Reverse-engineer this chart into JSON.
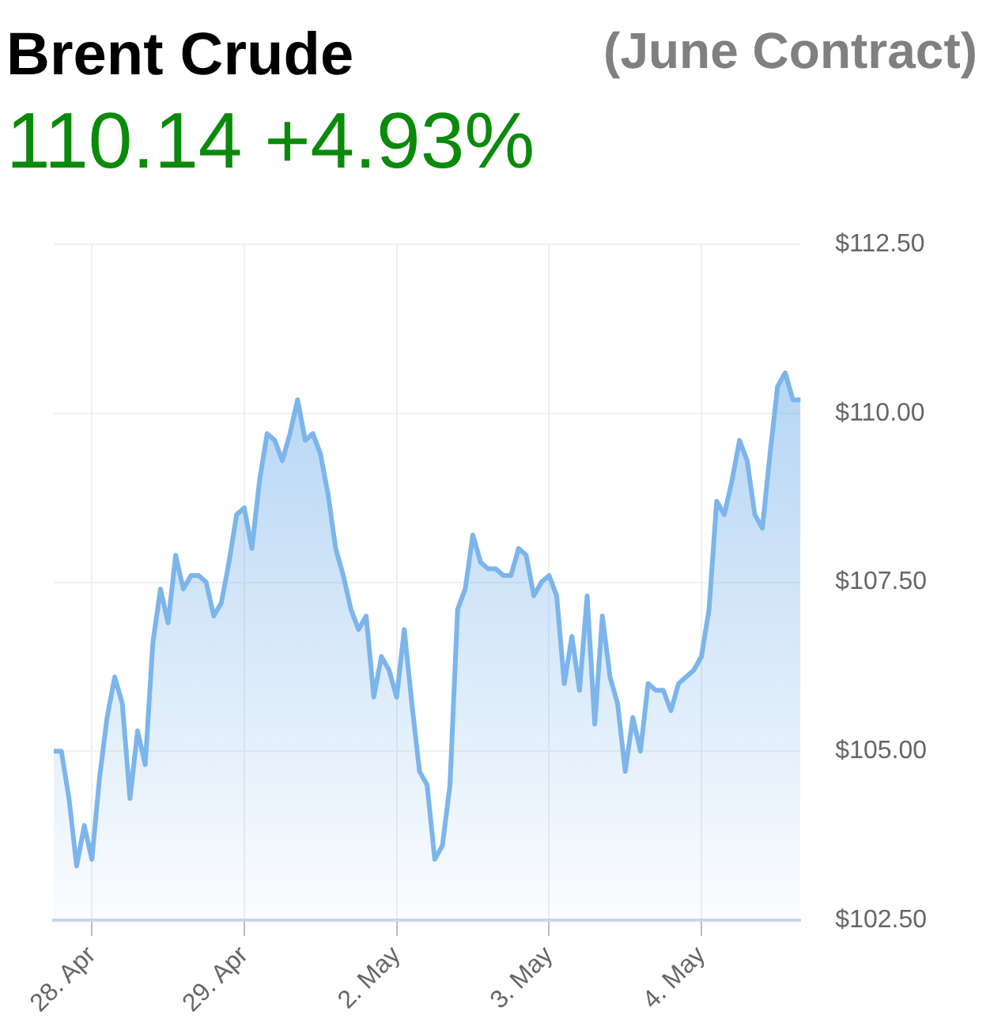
{
  "chart_data": {
    "type": "area",
    "title": "Brent Crude",
    "subtitle": "(June Contract)",
    "annotations": [
      "110.14 +4.93%"
    ],
    "categories": [
      null,
      null,
      null,
      null,
      null,
      "28. Apr",
      null,
      null,
      null,
      null,
      null,
      null,
      null,
      null,
      null,
      null,
      null,
      null,
      null,
      null,
      null,
      null,
      null,
      null,
      null,
      "29. Apr",
      null,
      null,
      null,
      null,
      null,
      null,
      null,
      null,
      null,
      null,
      null,
      null,
      null,
      null,
      null,
      null,
      null,
      null,
      null,
      "2. May",
      null,
      null,
      null,
      null,
      null,
      null,
      null,
      null,
      null,
      null,
      null,
      null,
      null,
      null,
      null,
      null,
      null,
      null,
      null,
      "3. May",
      null,
      null,
      null,
      null,
      null,
      null,
      null,
      null,
      null,
      null,
      null,
      null,
      null,
      null,
      null,
      null,
      null,
      null,
      null,
      "4. May",
      null,
      null,
      null,
      null,
      null,
      null,
      null,
      null,
      null,
      null,
      null,
      null,
      null
    ],
    "ylim": [
      102.5,
      112.5
    ],
    "yticks": [
      {
        "value": 102.5,
        "label": "$102.50"
      },
      {
        "value": 105,
        "label": "$105.00"
      },
      {
        "value": 107.5,
        "label": "$107.50"
      },
      {
        "value": 110,
        "label": "$110.00"
      },
      {
        "value": 112.5,
        "label": "$112.50"
      }
    ],
    "grid": true,
    "marker": "none",
    "line_style": "solid",
    "series": [
      {
        "color": "#7cb5ec",
        "values": [
          105.0,
          105.0,
          104.3,
          103.3,
          103.9,
          103.4,
          104.6,
          105.5,
          106.1,
          105.7,
          104.3,
          105.3,
          104.8,
          106.6,
          107.4,
          106.9,
          107.9,
          107.4,
          107.6,
          107.6,
          107.5,
          107.0,
          107.2,
          107.8,
          108.5,
          108.6,
          108.0,
          109.0,
          109.7,
          109.6,
          109.3,
          109.7,
          110.2,
          109.6,
          109.7,
          109.4,
          108.8,
          108.0,
          107.6,
          107.1,
          106.8,
          107.0,
          105.8,
          106.4,
          106.2,
          105.8,
          106.8,
          105.7,
          104.7,
          104.5,
          103.4,
          103.6,
          104.5,
          107.1,
          107.4,
          108.2,
          107.8,
          107.7,
          107.7,
          107.6,
          107.6,
          108.0,
          107.9,
          107.3,
          107.5,
          107.6,
          107.3,
          106.0,
          106.7,
          105.9,
          107.3,
          105.4,
          107.0,
          106.1,
          105.7,
          104.7,
          105.5,
          105.0,
          106.0,
          105.9,
          105.9,
          105.6,
          106.0,
          106.1,
          106.2,
          106.4,
          107.1,
          108.7,
          108.5,
          109.0,
          109.6,
          109.3,
          108.5,
          108.3,
          109.4,
          110.4,
          110.6,
          110.2,
          110.2
        ]
      }
    ]
  }
}
